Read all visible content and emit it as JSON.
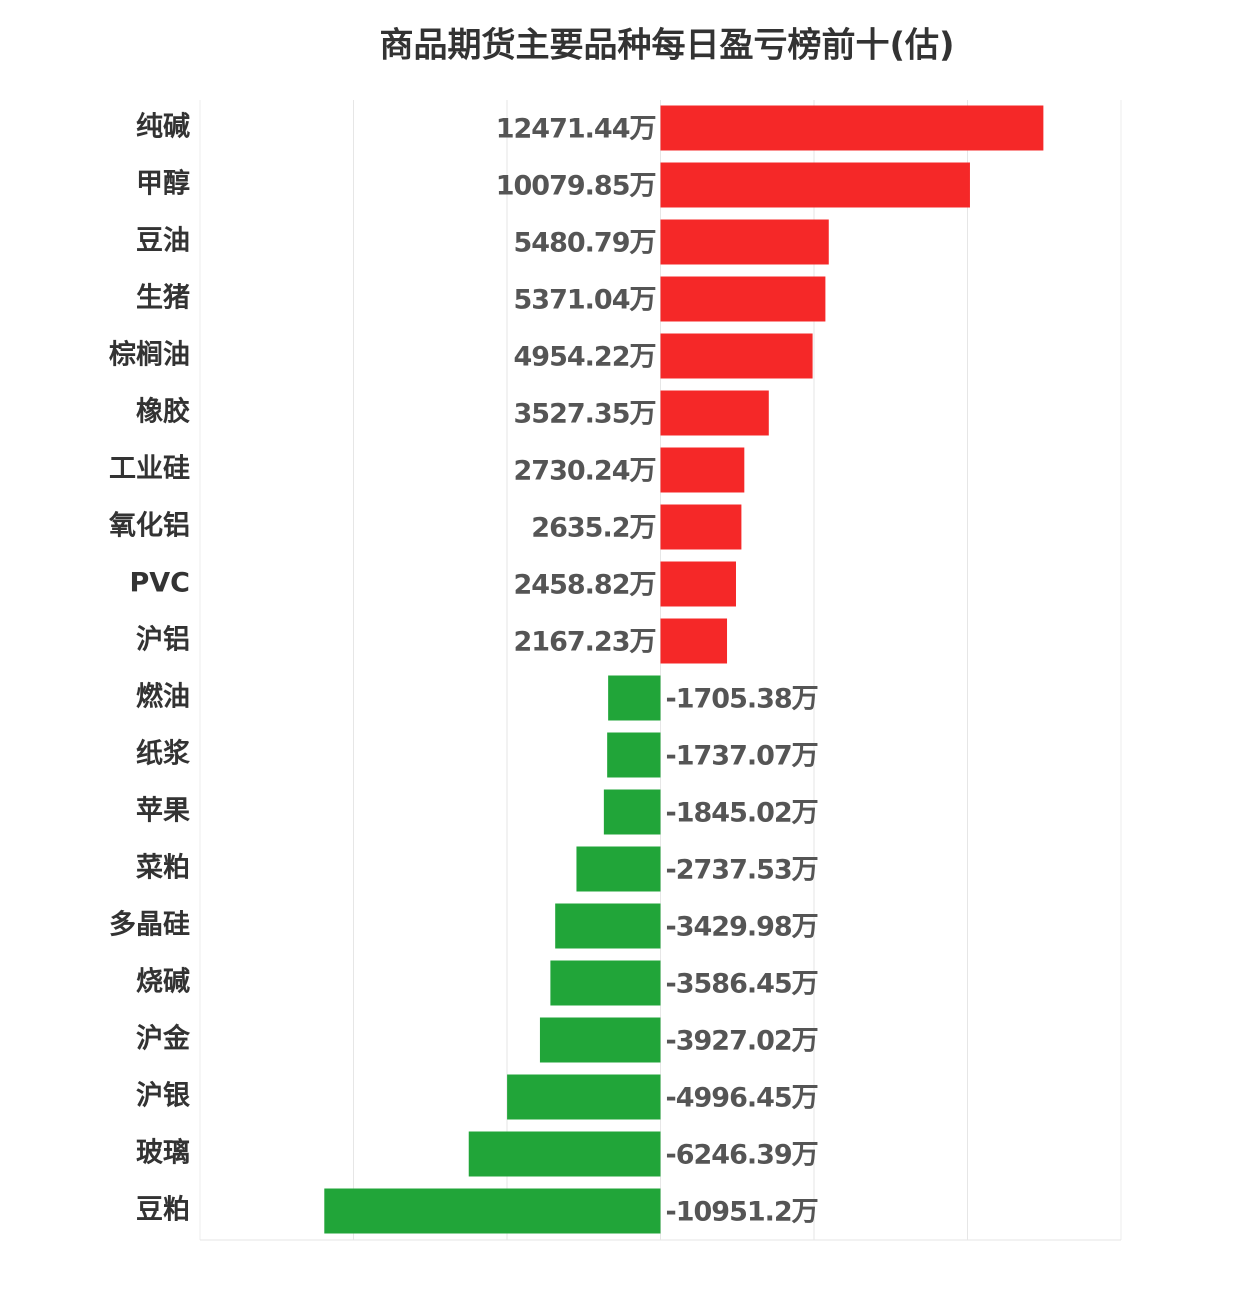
{
  "chart_data": {
    "type": "bar",
    "orientation": "horizontal",
    "title": "商品期货主要品种每日盈亏榜前十(估)",
    "categories": [
      "纯碱",
      "甲醇",
      "豆油",
      "生猪",
      "棕榈油",
      "橡胶",
      "工业硅",
      "氧化铝",
      "PVC",
      "沪铝",
      "燃油",
      "纸浆",
      "苹果",
      "菜粕",
      "多晶硅",
      "烧碱",
      "沪金",
      "沪银",
      "玻璃",
      "豆粕"
    ],
    "values": [
      12471.44,
      10079.85,
      5480.79,
      5371.04,
      4954.22,
      3527.35,
      2730.24,
      2635.2,
      2458.82,
      2167.23,
      -1705.38,
      -1737.07,
      -1845.02,
      -2737.53,
      -3429.98,
      -3586.45,
      -3927.02,
      -4996.45,
      -6246.39,
      -10951.2
    ],
    "value_labels": [
      "12471.44万",
      "10079.85万",
      "5480.79万",
      "5371.04万",
      "4954.22万",
      "3527.35万",
      "2730.24万",
      "2635.2万",
      "2458.82万",
      "2167.23万",
      "-1705.38万",
      "-1737.07万",
      "-1845.02万",
      "-2737.53万",
      "-3429.98万",
      "-3586.45万",
      "-3927.02万",
      "-4996.45万",
      "-6246.39万",
      "-10951.2万"
    ],
    "positive_color": "#f52828",
    "negative_color": "#21a539",
    "xlim": [
      -15000,
      15000
    ],
    "xticks": [
      -10000,
      -5000,
      0,
      5000,
      10000
    ],
    "grid": true
  }
}
